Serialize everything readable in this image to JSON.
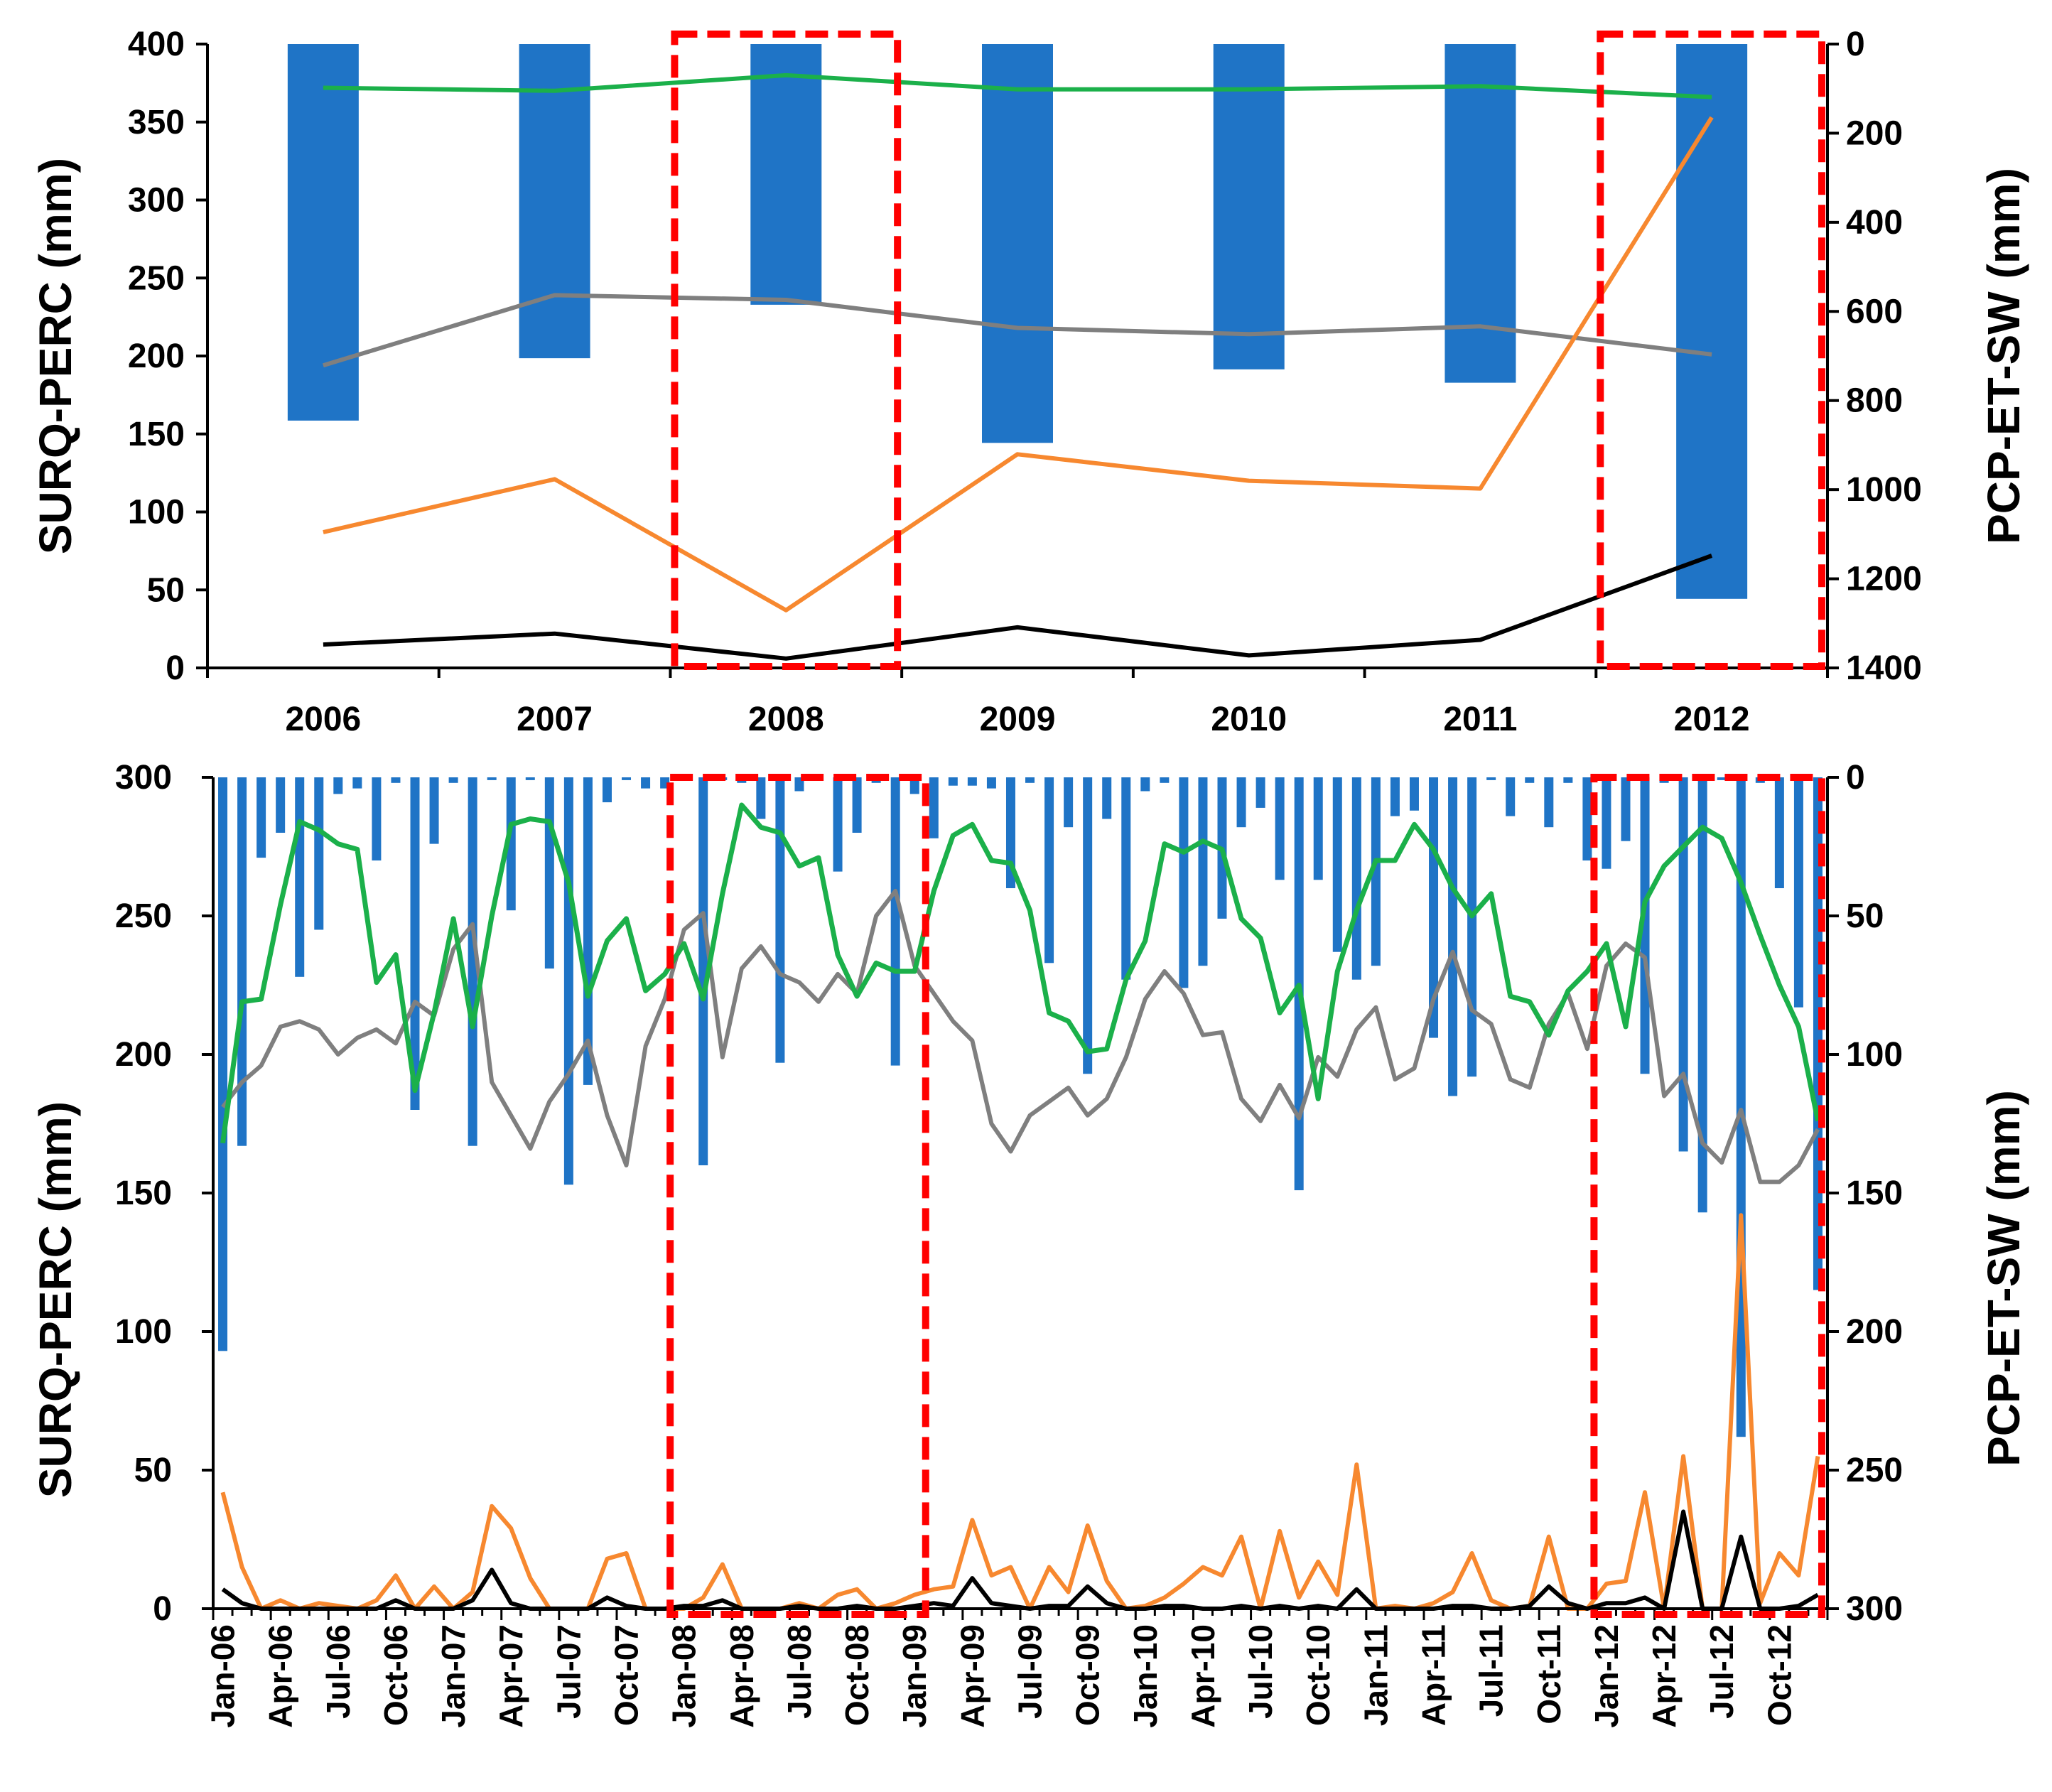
{
  "colors": {
    "bar": "#1F74C6",
    "green": "#1BB04A",
    "gray": "#7F7F7F",
    "orange": "#F7882F",
    "black": "#000000",
    "highlight": "#FF0000"
  },
  "chart_data": [
    {
      "type": "bar+line (dual axis)",
      "title": "",
      "ylabel": "SURQ-PERC (mm)",
      "y2label": "PCP-ET-SW (mm)",
      "ylim": [
        0,
        400
      ],
      "y2lim": [
        0,
        1400
      ],
      "y2_inverted": true,
      "yticks": [
        "0",
        "50",
        "100",
        "150",
        "200",
        "250",
        "300",
        "350",
        "400"
      ],
      "y2ticks": [
        "0",
        "200",
        "400",
        "600",
        "800",
        "1000",
        "1200",
        "1400"
      ],
      "categories": [
        "2006",
        "2007",
        "2008",
        "2009",
        "2010",
        "2011",
        "2012"
      ],
      "bars": {
        "axis": "right",
        "values": [
          845,
          705,
          585,
          895,
          730,
          760,
          1245
        ]
      },
      "series": [
        {
          "name": "green",
          "values": [
            372,
            370,
            380,
            371,
            371,
            373,
            366
          ]
        },
        {
          "name": "gray",
          "values": [
            194,
            239,
            236,
            218,
            214,
            219,
            201
          ]
        },
        {
          "name": "orange",
          "values": [
            87,
            121,
            37,
            137,
            120,
            115,
            353
          ]
        },
        {
          "name": "black",
          "values": [
            15,
            22,
            6,
            26,
            8,
            18,
            72
          ]
        }
      ],
      "highlighted_categories": [
        "2008",
        "2012"
      ]
    },
    {
      "type": "bar+line (dual axis)",
      "title": "",
      "ylabel": "SURQ-PERC (mm)",
      "y2label": "PCP-ET-SW (mm)",
      "ylim": [
        0,
        300
      ],
      "y2lim": [
        0,
        300
      ],
      "y2_inverted": true,
      "yticks": [
        "0",
        "50",
        "100",
        "150",
        "200",
        "250",
        "300"
      ],
      "y2ticks": [
        "0",
        "50",
        "100",
        "150",
        "200",
        "250",
        "300"
      ],
      "month_count": 84,
      "xtick_labels": [
        "Jan-06",
        "Apr-06",
        "Jul-06",
        "Oct-06",
        "Jan-07",
        "Apr-07",
        "Jul-07",
        "Oct-07",
        "Jan-08",
        "Apr-08",
        "Jul-08",
        "Oct-08",
        "Jan-09",
        "Apr-09",
        "Jul-09",
        "Oct-09",
        "Jan-10",
        "Apr-10",
        "Jul-10",
        "Oct-10",
        "Jan-11",
        "Apr-11",
        "Jul-11",
        "Oct-11",
        "Jan-12",
        "Apr-12",
        "Jul-12",
        "Oct-12"
      ],
      "bars": {
        "axis": "right",
        "values": [
          207,
          133,
          29,
          20,
          72,
          55,
          6,
          4,
          30,
          2,
          120,
          24,
          2,
          133,
          1,
          48,
          1,
          69,
          147,
          111,
          9,
          1,
          4,
          4,
          1,
          140,
          1,
          2,
          15,
          103,
          5,
          1,
          34,
          20,
          2,
          104,
          6,
          22,
          3,
          3,
          4,
          40,
          2,
          67,
          18,
          107,
          15,
          73,
          5,
          2,
          76,
          68,
          51,
          18,
          11,
          37,
          149,
          37,
          63,
          73,
          68,
          14,
          12,
          94,
          115,
          108,
          1,
          14,
          2,
          18,
          2,
          30,
          33,
          23,
          107,
          2,
          135,
          157,
          1,
          238,
          2,
          40,
          83,
          185
        ]
      },
      "series": [
        {
          "name": "green",
          "values": [
            168,
            219,
            220,
            254,
            284,
            281,
            276,
            274,
            226,
            236,
            187,
            215,
            249,
            210,
            250,
            283,
            285,
            284,
            262,
            221,
            241,
            249,
            223,
            229,
            240,
            220,
            258,
            290,
            282,
            280,
            268,
            271,
            236,
            221,
            233,
            230,
            230,
            259,
            279,
            283,
            270,
            269,
            252,
            215,
            212,
            201,
            202,
            227,
            241,
            276,
            273,
            277,
            274,
            249,
            242,
            215,
            225,
            184,
            230,
            252,
            270,
            270,
            283,
            274,
            260,
            250,
            258,
            221,
            219,
            207,
            223,
            230,
            240,
            210,
            255,
            268,
            275,
            282,
            278,
            262,
            243,
            225,
            210,
            176
          ]
        },
        {
          "name": "gray",
          "values": [
            181,
            190,
            196,
            210,
            212,
            209,
            200,
            206,
            209,
            204,
            219,
            214,
            238,
            247,
            190,
            178,
            166,
            183,
            193,
            205,
            178,
            160,
            203,
            220,
            245,
            251,
            199,
            231,
            239,
            229,
            226,
            219,
            229,
            222,
            250,
            259,
            232,
            222,
            212,
            205,
            175,
            165,
            178,
            183,
            188,
            178,
            184,
            199,
            220,
            230,
            222,
            207,
            208,
            184,
            176,
            189,
            177,
            199,
            192,
            209,
            217,
            191,
            195,
            220,
            237,
            216,
            211,
            191,
            188,
            211,
            222,
            202,
            232,
            240,
            235,
            185,
            193,
            168,
            161,
            180,
            154,
            154,
            160,
            173
          ]
        },
        {
          "name": "orange",
          "values": [
            42,
            15,
            0,
            3,
            0,
            2,
            1,
            0,
            3,
            12,
            0,
            8,
            0,
            6,
            37,
            29,
            11,
            0,
            0,
            0,
            18,
            20,
            0,
            0,
            0,
            4,
            16,
            0,
            0,
            0,
            2,
            0,
            5,
            7,
            0,
            2,
            5,
            7,
            8,
            32,
            12,
            15,
            0,
            15,
            6,
            30,
            10,
            0,
            1,
            4,
            9,
            15,
            12,
            26,
            0,
            28,
            4,
            17,
            5,
            52,
            0,
            1,
            0,
            2,
            6,
            20,
            3,
            0,
            1,
            26,
            0,
            0,
            9,
            10,
            42,
            0,
            55,
            0,
            0,
            142,
            2,
            20,
            12,
            55
          ]
        },
        {
          "name": "black",
          "values": [
            7,
            2,
            0,
            0,
            0,
            0,
            0,
            0,
            0,
            3,
            0,
            0,
            0,
            3,
            14,
            2,
            0,
            0,
            0,
            0,
            4,
            1,
            0,
            0,
            1,
            1,
            3,
            0,
            0,
            0,
            1,
            0,
            0,
            1,
            0,
            0,
            1,
            2,
            1,
            11,
            2,
            1,
            0,
            1,
            1,
            8,
            2,
            0,
            0,
            1,
            1,
            0,
            0,
            1,
            0,
            1,
            0,
            1,
            0,
            7,
            0,
            0,
            0,
            0,
            1,
            1,
            0,
            0,
            1,
            8,
            2,
            0,
            2,
            2,
            4,
            0,
            35,
            0,
            0,
            26,
            0,
            0,
            1,
            5
          ]
        }
      ],
      "highlighted_ranges": [
        [
          "Jan-08",
          "Jan-09"
        ],
        [
          "Jan-12",
          "Dec-12"
        ]
      ]
    }
  ]
}
